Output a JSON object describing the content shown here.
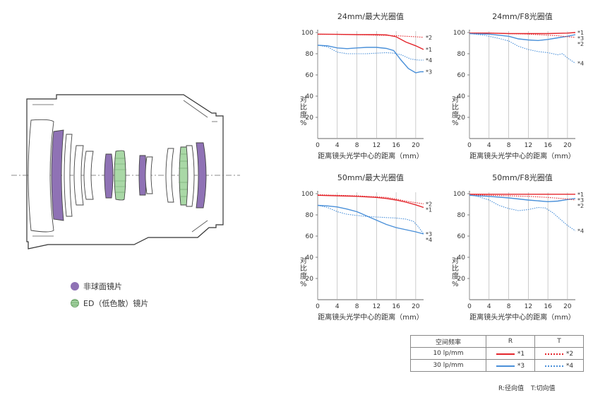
{
  "legend": {
    "aspherical": "非球面镜片",
    "ed": "ED（低色散）镜片"
  },
  "table": {
    "header": [
      "空间频率",
      "R",
      "T"
    ],
    "rows": [
      {
        "freq": "10 lp/mm",
        "r_mark": "*1",
        "t_mark": "*2"
      },
      {
        "freq": "30 lp/mm",
        "r_mark": "*3",
        "t_mark": "*4"
      }
    ],
    "note_r": "R:径向值",
    "note_t": "T:切向值"
  },
  "colors": {
    "red": "#e4262c",
    "blue": "#4a90d9"
  },
  "chart_data": [
    {
      "type": "line",
      "title": "24mm/最大光圈值",
      "xlabel": "距离镜头光学中心的距离（mm）",
      "ylabel": "对比度%",
      "xlim": [
        0,
        21.6
      ],
      "ylim": [
        0,
        100
      ],
      "xticks": [
        0,
        4,
        8,
        12,
        16,
        20
      ],
      "yticks": [
        20,
        40,
        60,
        80,
        100
      ],
      "series": [
        {
          "name": "*1",
          "values": [
            [
              0,
              98.5
            ],
            [
              4,
              98.3
            ],
            [
              8,
              98
            ],
            [
              12,
              98
            ],
            [
              14,
              97.8
            ],
            [
              16,
              96
            ],
            [
              18,
              91
            ],
            [
              20,
              87.5
            ],
            [
              21.6,
              84
            ]
          ]
        },
        {
          "name": "*2",
          "values": [
            [
              0,
              98.3
            ],
            [
              4,
              98.3
            ],
            [
              8,
              98
            ],
            [
              12,
              97.5
            ],
            [
              16,
              97
            ],
            [
              18,
              96.5
            ],
            [
              20,
              96
            ],
            [
              21.6,
              95.5
            ]
          ]
        },
        {
          "name": "*3",
          "values": [
            [
              0,
              88
            ],
            [
              2,
              87.5
            ],
            [
              4,
              85.5
            ],
            [
              6,
              84.8
            ],
            [
              8,
              85.5
            ],
            [
              10,
              86
            ],
            [
              12,
              86
            ],
            [
              14,
              85
            ],
            [
              15.5,
              83
            ],
            [
              17,
              74
            ],
            [
              18.5,
              66
            ],
            [
              20,
              62
            ],
            [
              21,
              63
            ],
            [
              21.6,
              63
            ]
          ]
        },
        {
          "name": "*4",
          "values": [
            [
              0,
              88
            ],
            [
              2,
              86.5
            ],
            [
              4,
              81.5
            ],
            [
              6,
              80
            ],
            [
              8,
              80
            ],
            [
              10,
              80
            ],
            [
              12,
              80.5
            ],
            [
              14,
              81
            ],
            [
              15.5,
              80.5
            ],
            [
              17,
              79
            ],
            [
              19,
              75
            ],
            [
              20.5,
              74
            ],
            [
              21.6,
              74
            ]
          ]
        }
      ]
    },
    {
      "type": "line",
      "title": "24mm/F8光圈值",
      "xlabel": "距离镜头光学中心的距离（mm）",
      "ylabel": "对比度%",
      "xlim": [
        0,
        21.6
      ],
      "ylim": [
        0,
        100
      ],
      "xticks": [
        0,
        4,
        8,
        12,
        16,
        20
      ],
      "yticks": [
        20,
        40,
        60,
        80,
        100
      ],
      "series": [
        {
          "name": "*1",
          "values": [
            [
              0,
              99.5
            ],
            [
              4,
              99.5
            ],
            [
              8,
              99
            ],
            [
              12,
              99
            ],
            [
              16,
              99
            ],
            [
              20,
              99.5
            ],
            [
              21.6,
              100
            ]
          ]
        },
        {
          "name": "*3",
          "values": [
            [
              0,
              99
            ],
            [
              4,
              98.5
            ],
            [
              8,
              96.5
            ],
            [
              10,
              94
            ],
            [
              12,
              93
            ],
            [
              14,
              92.5
            ],
            [
              16,
              93.5
            ],
            [
              18,
              95
            ],
            [
              20,
              96.5
            ],
            [
              21.6,
              98
            ]
          ]
        },
        {
          "name": "*2",
          "values": [
            [
              0,
              99.5
            ],
            [
              4,
              99.5
            ],
            [
              8,
              99
            ],
            [
              12,
              98.5
            ],
            [
              16,
              97.5
            ],
            [
              18,
              97
            ],
            [
              20,
              96
            ],
            [
              21.6,
              95.5
            ]
          ]
        },
        {
          "name": "*4",
          "values": [
            [
              0,
              99
            ],
            [
              3,
              97.5
            ],
            [
              6,
              94.5
            ],
            [
              8,
              92
            ],
            [
              10,
              87
            ],
            [
              12,
              84
            ],
            [
              14,
              82
            ],
            [
              16,
              81
            ],
            [
              18,
              79
            ],
            [
              19,
              80
            ],
            [
              20,
              76
            ],
            [
              21.6,
              71
            ]
          ]
        }
      ]
    },
    {
      "type": "line",
      "title": "50mm/最大光圈值",
      "xlabel": "距离镜头光学中心的距离（mm）",
      "ylabel": "对比度%",
      "xlim": [
        0,
        21.6
      ],
      "ylim": [
        0,
        100
      ],
      "xticks": [
        0,
        4,
        8,
        12,
        16,
        20
      ],
      "yticks": [
        20,
        40,
        60,
        80,
        100
      ],
      "series": [
        {
          "name": "*2",
          "values": [
            [
              0,
              99
            ],
            [
              4,
              98.5
            ],
            [
              8,
              98
            ],
            [
              12,
              97
            ],
            [
              14,
              96.5
            ],
            [
              16,
              95
            ],
            [
              18,
              93
            ],
            [
              20,
              91.5
            ],
            [
              21.6,
              90.5
            ]
          ]
        },
        {
          "name": "*1",
          "values": [
            [
              0,
              98.5
            ],
            [
              4,
              98
            ],
            [
              8,
              97.5
            ],
            [
              12,
              96.5
            ],
            [
              14,
              95.5
            ],
            [
              16,
              94
            ],
            [
              18,
              92
            ],
            [
              20,
              89.5
            ],
            [
              21.6,
              87
            ]
          ]
        },
        {
          "name": "*3",
          "values": [
            [
              0,
              89
            ],
            [
              2,
              88.5
            ],
            [
              4,
              87.5
            ],
            [
              6,
              85.5
            ],
            [
              8,
              83
            ],
            [
              10,
              79
            ],
            [
              12,
              75
            ],
            [
              14,
              71
            ],
            [
              16,
              68
            ],
            [
              18,
              66
            ],
            [
              20,
              64
            ],
            [
              21.6,
              62
            ]
          ]
        },
        {
          "name": "*4",
          "values": [
            [
              0,
              89
            ],
            [
              2,
              87
            ],
            [
              4,
              83
            ],
            [
              6,
              80.5
            ],
            [
              8,
              79.5
            ],
            [
              10,
              78.5
            ],
            [
              12,
              78
            ],
            [
              14,
              77.5
            ],
            [
              16,
              77
            ],
            [
              18,
              76
            ],
            [
              19.5,
              74
            ],
            [
              20.5,
              69
            ],
            [
              21.6,
              62
            ]
          ]
        }
      ]
    },
    {
      "type": "line",
      "title": "50mm/F8光圈值",
      "xlabel": "距离镜头光学中心的距离（mm）",
      "ylabel": "对比度%",
      "xlim": [
        0,
        21.6
      ],
      "ylim": [
        0,
        100
      ],
      "xticks": [
        0,
        4,
        8,
        12,
        16,
        20
      ],
      "yticks": [
        20,
        40,
        60,
        80,
        100
      ],
      "series": [
        {
          "name": "*1",
          "values": [
            [
              0,
              99.5
            ],
            [
              4,
              99.5
            ],
            [
              8,
              99.5
            ],
            [
              12,
              99.5
            ],
            [
              16,
              99.5
            ],
            [
              20,
              99.5
            ],
            [
              21.6,
              99.5
            ]
          ]
        },
        {
          "name": "*3",
          "values": [
            [
              0,
              98.5
            ],
            [
              4,
              97.5
            ],
            [
              8,
              96
            ],
            [
              12,
              94
            ],
            [
              16,
              92.5
            ],
            [
              18,
              93
            ],
            [
              20,
              94.5
            ],
            [
              21.6,
              95.5
            ]
          ]
        },
        {
          "name": "*2",
          "values": [
            [
              0,
              99
            ],
            [
              4,
              98.5
            ],
            [
              8,
              98
            ],
            [
              12,
              97.5
            ],
            [
              16,
              96.5
            ],
            [
              20,
              95
            ],
            [
              21.6,
              94
            ]
          ]
        },
        {
          "name": "*4",
          "values": [
            [
              0,
              99
            ],
            [
              2,
              97
            ],
            [
              4,
              94
            ],
            [
              6,
              89
            ],
            [
              7,
              87.5
            ],
            [
              8,
              86
            ],
            [
              10,
              84
            ],
            [
              12,
              85
            ],
            [
              14,
              87
            ],
            [
              15.5,
              86.5
            ],
            [
              17,
              82
            ],
            [
              18.5,
              76
            ],
            [
              20,
              70
            ],
            [
              21.6,
              65
            ]
          ]
        }
      ]
    }
  ]
}
